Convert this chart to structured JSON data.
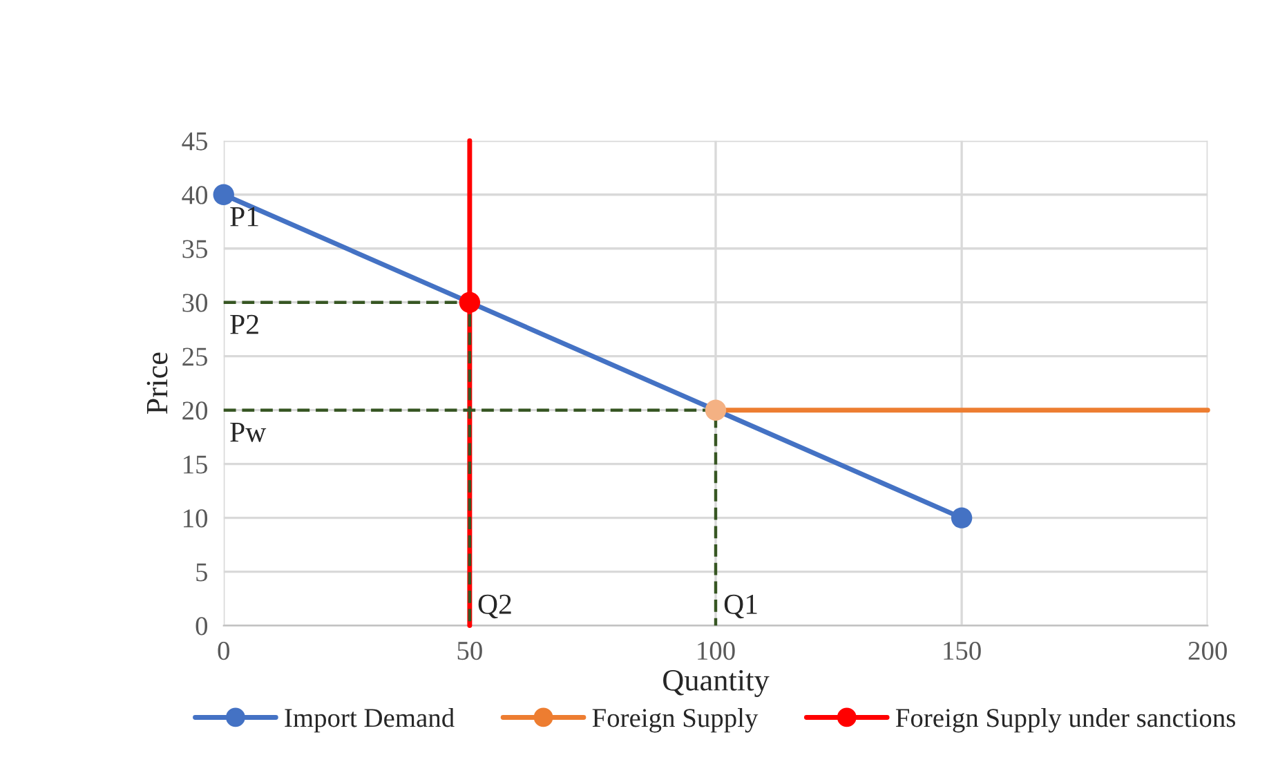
{
  "chart_data": {
    "type": "line",
    "xlabel": "Quantity",
    "ylabel": "Price",
    "xlim": [
      0,
      200
    ],
    "ylim": [
      0,
      45
    ],
    "xticks": [
      0,
      50,
      100,
      150,
      200
    ],
    "yticks": [
      0,
      5,
      10,
      15,
      20,
      25,
      30,
      35,
      40,
      45
    ],
    "grid": true,
    "legend": "bottom",
    "series": [
      {
        "name": "Import Demand",
        "color": "#4472c4",
        "x": [
          0,
          150
        ],
        "values": [
          40,
          10
        ]
      },
      {
        "name": "Foreign Supply",
        "color": "#ed7d31",
        "x": [
          100,
          200
        ],
        "values": [
          20,
          20
        ]
      },
      {
        "name": "Foreign Supply under sanctions",
        "color": "#ff0000",
        "x": [
          50,
          50
        ],
        "values": [
          0,
          45
        ]
      },
      {
        "color": "#4472c4",
        "type": "scatter",
        "x": [
          0,
          150
        ],
        "values": [
          40,
          10
        ]
      },
      {
        "color": "#f4b183",
        "type": "scatter",
        "x": [
          100
        ],
        "values": [
          20
        ]
      },
      {
        "color": "#ff0000",
        "type": "scatter",
        "x": [
          50
        ],
        "values": [
          30
        ]
      },
      {
        "color": "#375623",
        "line_style": "dashed",
        "x": [
          0,
          50,
          50
        ],
        "values": [
          30,
          30,
          0
        ]
      },
      {
        "color": "#375623",
        "line_style": "dashed",
        "x": [
          0,
          100,
          100
        ],
        "values": [
          20,
          20,
          0
        ]
      }
    ],
    "annotations": [
      {
        "text": "P1",
        "x": 0,
        "y": 40
      },
      {
        "text": "P2",
        "x": 0,
        "y": 30
      },
      {
        "text": "Pw",
        "x": 0,
        "y": 20
      },
      {
        "text": "Q2",
        "x": 50,
        "y": 0
      },
      {
        "text": "Q1",
        "x": 100,
        "y": 0
      }
    ]
  }
}
